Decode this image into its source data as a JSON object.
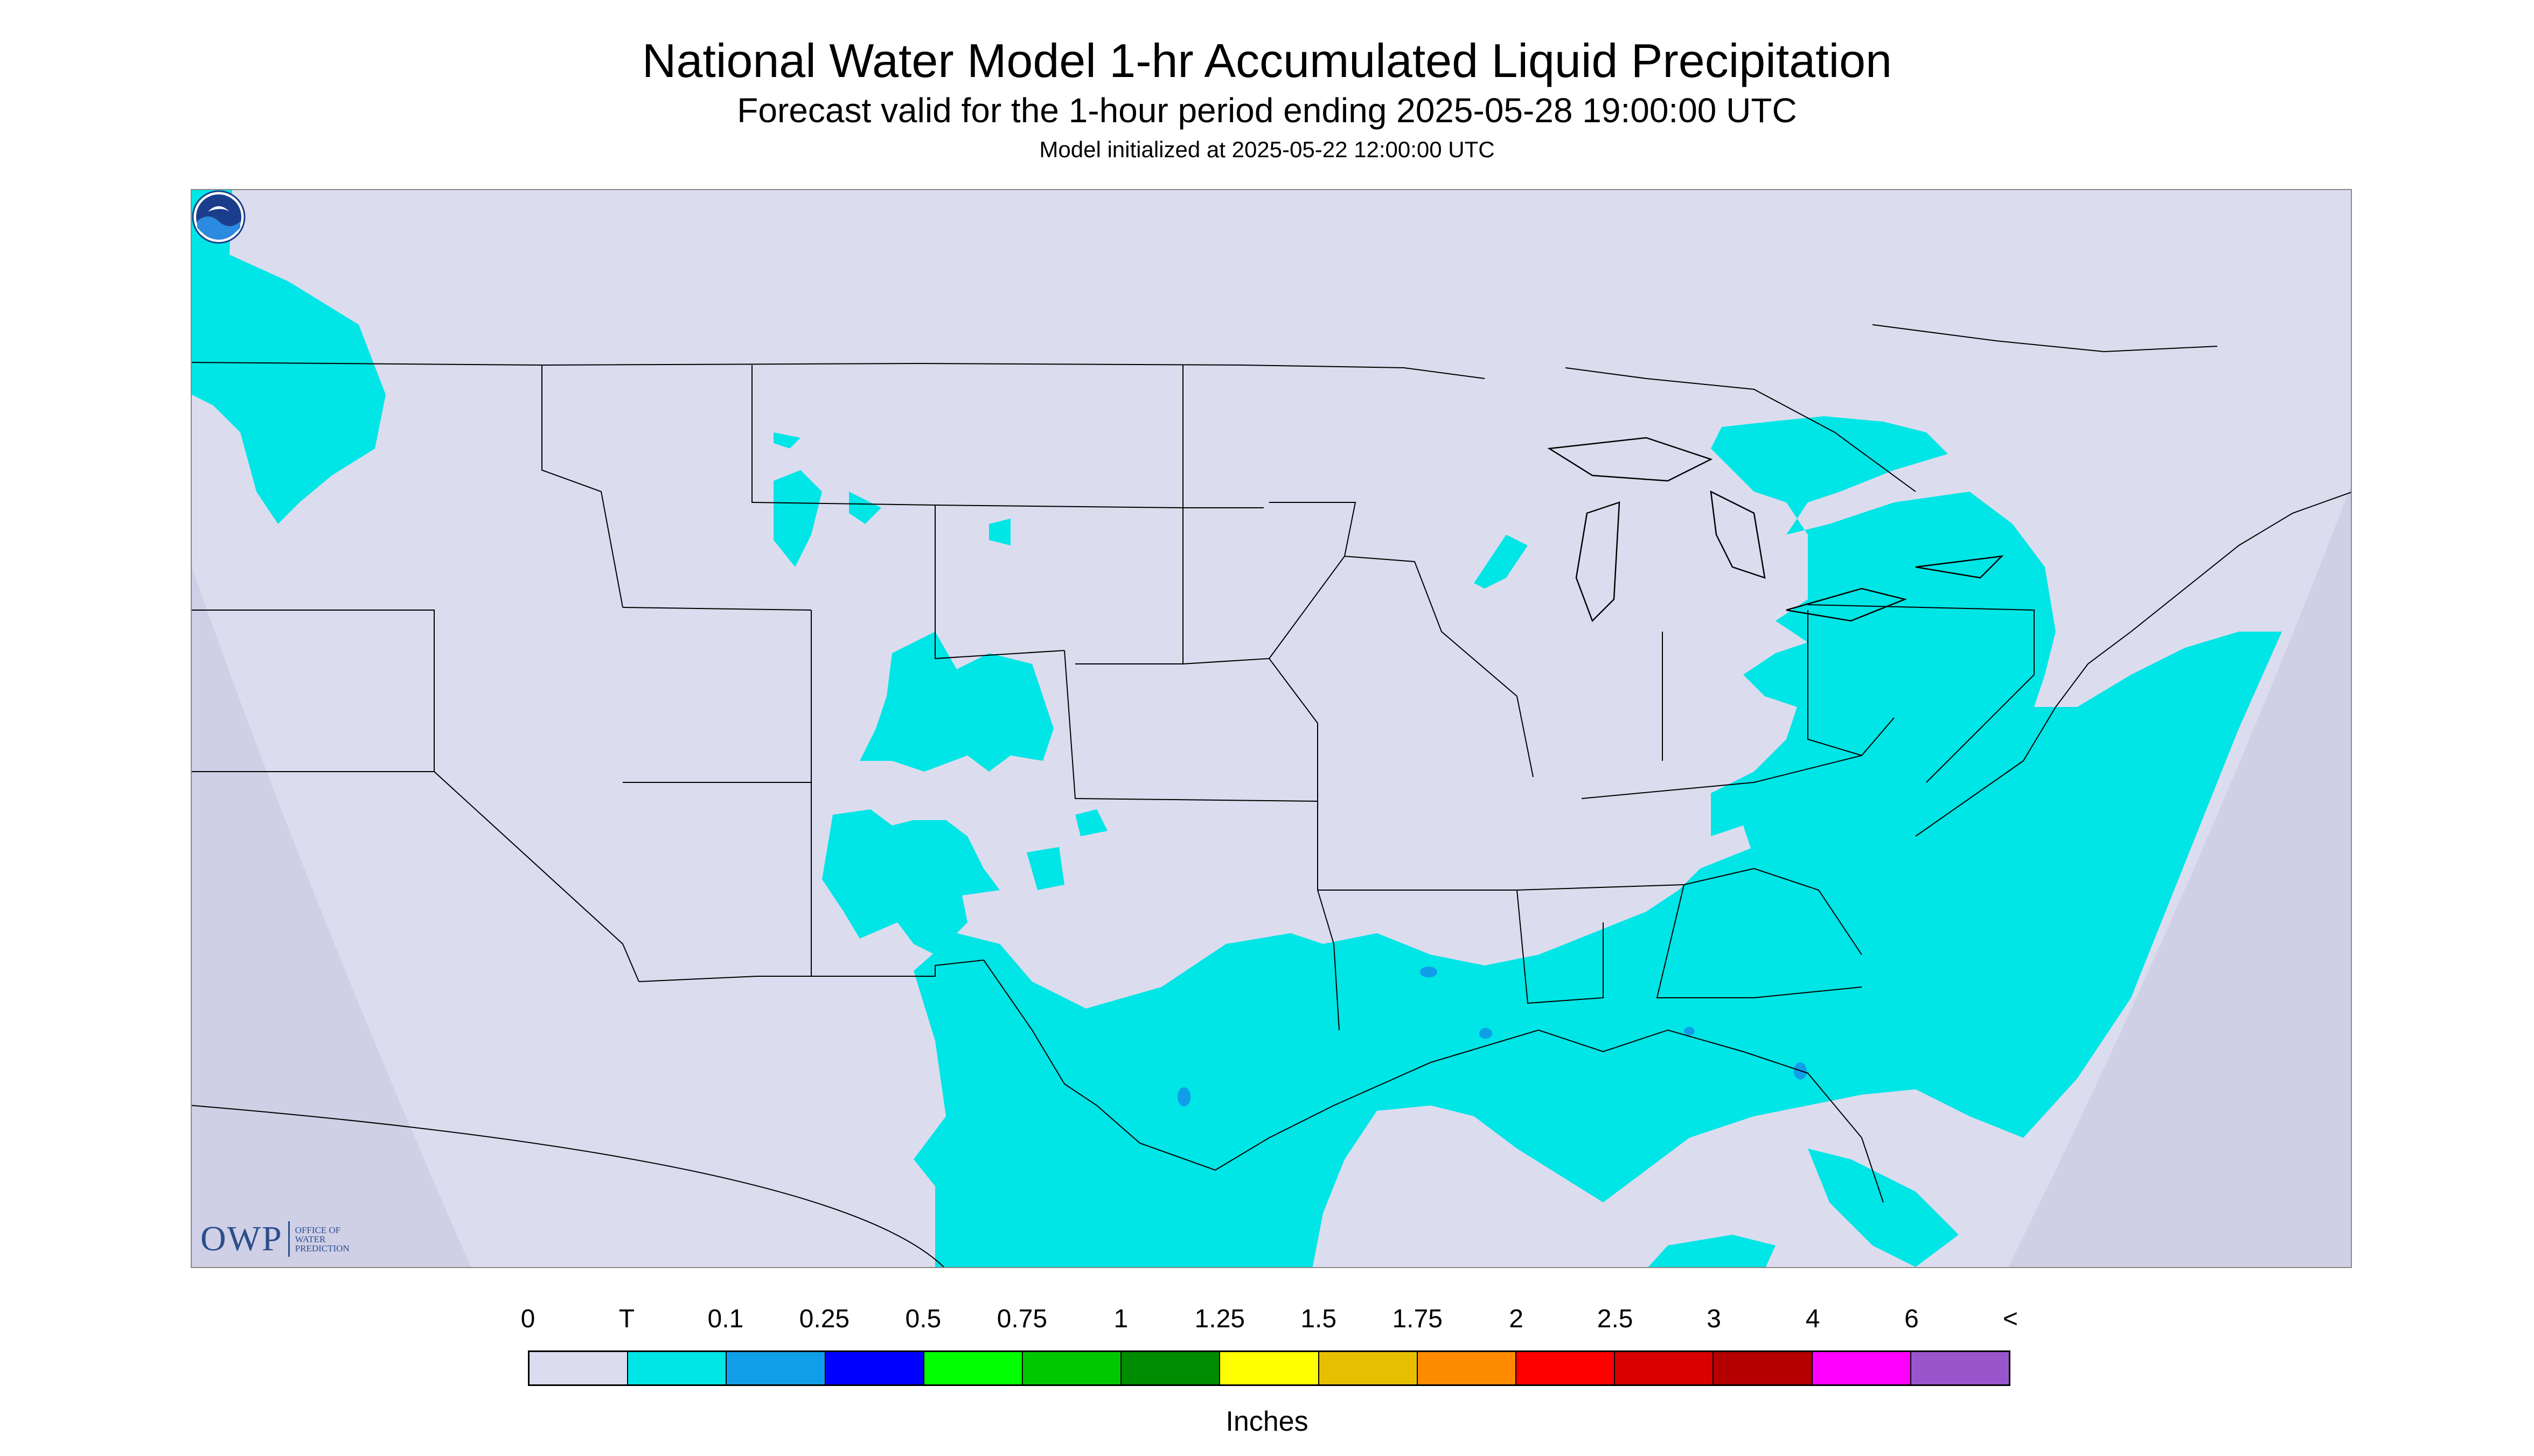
{
  "title": "National Water Model 1-hr Accumulated Liquid Precipitation",
  "subtitle": "Forecast valid for the 1-hour period ending 2025-05-28 19:00:00 UTC",
  "init_line": "Model initialized at 2025-05-22 12:00:00 UTC",
  "logos": {
    "owp_letters": "OWP",
    "owp_text": [
      "OFFICE OF",
      "WATER",
      "PREDICTION"
    ],
    "noaa_icon": "noaa-emblem"
  },
  "colors": {
    "background": "#dcdcef",
    "trace": "#00e5e5",
    "light_blue": "#1e90ff",
    "border_line": "#000000"
  },
  "legend": {
    "unit_label": "Inches",
    "tick_labels": [
      "0",
      "T",
      "0.1",
      "0.25",
      "0.5",
      "0.75",
      "1",
      "1.25",
      "1.5",
      "1.75",
      "2",
      "2.5",
      "3",
      "4",
      "6",
      "<"
    ],
    "swatches": [
      "#dcdcef",
      "#00e5e5",
      "#109ee8",
      "#0000ff",
      "#00ff00",
      "#00c800",
      "#008c00",
      "#ffff00",
      "#e6c000",
      "#ff8c00",
      "#ff0000",
      "#d80000",
      "#b40000",
      "#ff00ff",
      "#9955cc"
    ]
  }
}
